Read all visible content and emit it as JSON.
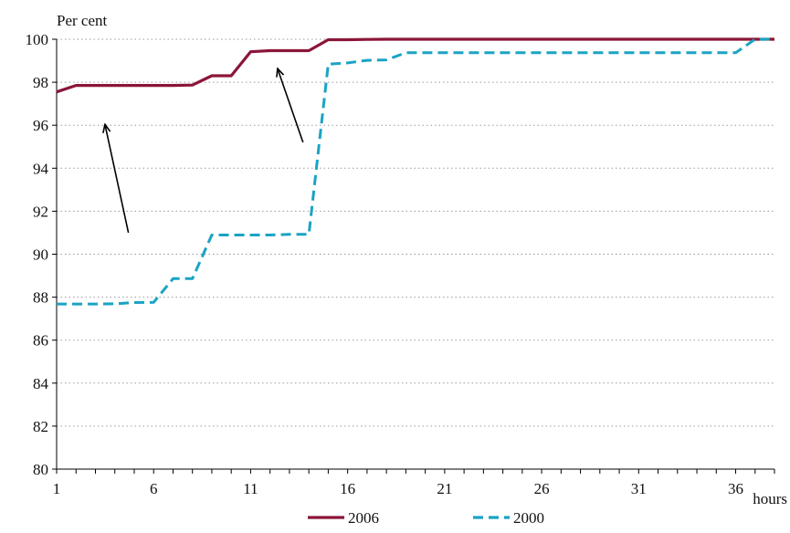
{
  "chart_data": {
    "type": "line",
    "ylabel": "Per cent",
    "xlabel": "hours",
    "ylim": [
      80,
      100
    ],
    "xlim": [
      1,
      38
    ],
    "yticks": [
      80,
      82,
      84,
      86,
      88,
      90,
      92,
      94,
      96,
      98,
      100
    ],
    "xticks": [
      1,
      6,
      11,
      16,
      21,
      26,
      31,
      36
    ],
    "grid": "horizontal-dotted",
    "legend_position": "bottom",
    "series": [
      {
        "name": "2006",
        "color": "#8b1538",
        "style": "solid",
        "x": [
          1,
          2,
          3,
          4,
          5,
          6,
          7,
          8,
          9,
          10,
          11,
          12,
          13,
          14,
          15,
          16,
          17,
          18,
          19,
          20,
          21,
          22,
          23,
          24,
          25,
          26,
          27,
          28,
          29,
          30,
          31,
          32,
          33,
          34,
          35,
          36,
          37,
          38
        ],
        "values": [
          97.55,
          97.85,
          97.85,
          97.85,
          97.85,
          97.85,
          97.85,
          97.87,
          98.3,
          98.3,
          99.42,
          99.47,
          99.47,
          99.47,
          99.98,
          99.98,
          99.99,
          100,
          100,
          100,
          100,
          100,
          100,
          100,
          100,
          100,
          100,
          100,
          100,
          100,
          100,
          100,
          100,
          100,
          100,
          100,
          100,
          100
        ]
      },
      {
        "name": "2000",
        "color": "#1aa3c4",
        "style": "dashed",
        "x": [
          1,
          2,
          3,
          4,
          5,
          6,
          7,
          8,
          9,
          10,
          11,
          12,
          13,
          14,
          15,
          16,
          17,
          18,
          19,
          20,
          21,
          22,
          23,
          24,
          25,
          26,
          27,
          28,
          29,
          30,
          31,
          32,
          33,
          34,
          35,
          36,
          37,
          38
        ],
        "values": [
          87.68,
          87.68,
          87.68,
          87.69,
          87.75,
          87.76,
          88.86,
          88.86,
          90.89,
          90.89,
          90.89,
          90.89,
          90.92,
          90.92,
          98.84,
          98.9,
          99.02,
          99.04,
          99.37,
          99.37,
          99.37,
          99.37,
          99.37,
          99.37,
          99.37,
          99.37,
          99.37,
          99.37,
          99.37,
          99.37,
          99.37,
          99.37,
          99.37,
          99.37,
          99.37,
          99.37,
          100,
          100
        ]
      }
    ],
    "annotations": [
      {
        "type": "arrow",
        "from": {
          "x": 4.7,
          "y": 91.0
        },
        "to": {
          "x": 3.5,
          "y": 96.0
        }
      },
      {
        "type": "arrow",
        "from": {
          "x": 13.7,
          "y": 95.2
        },
        "to": {
          "x": 12.4,
          "y": 98.6
        }
      }
    ]
  }
}
